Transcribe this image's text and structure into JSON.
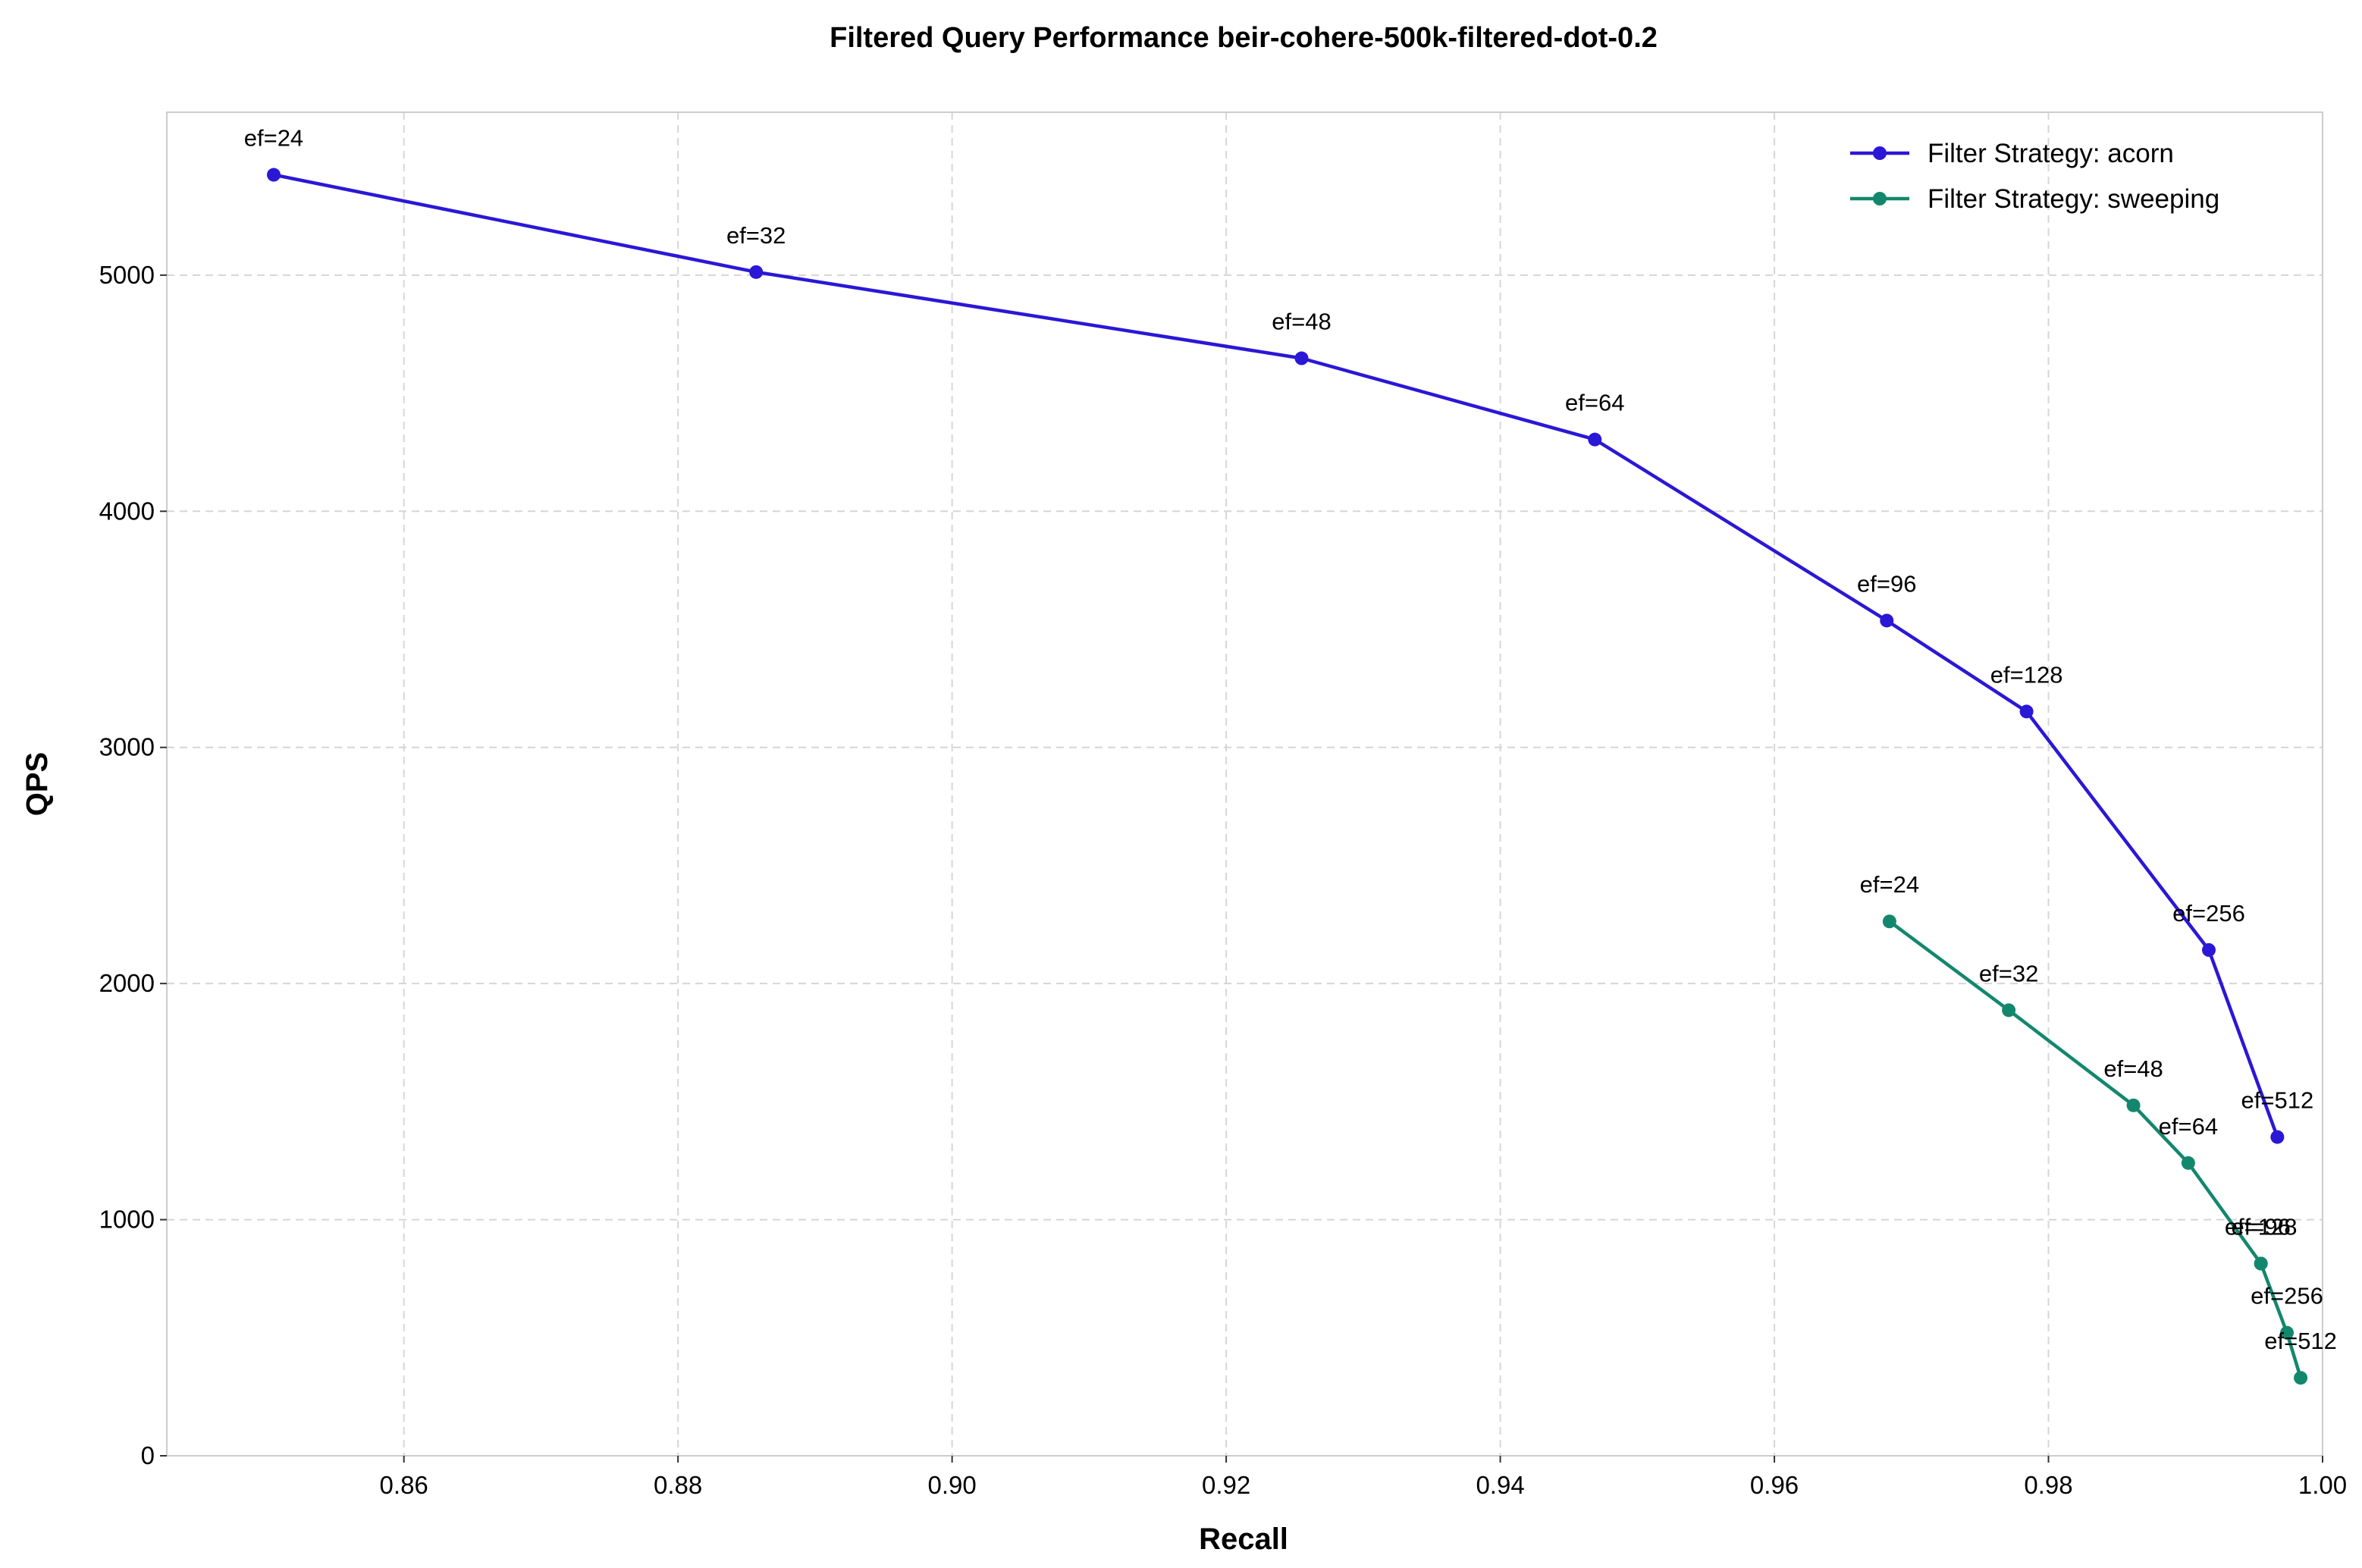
{
  "chart_data": {
    "type": "line",
    "title": "Filtered Query Performance beir-cohere-500k-filtered-dot-0.2",
    "xlabel": "Recall",
    "ylabel": "QPS",
    "xlim": [
      0.8427,
      1.0
    ],
    "ylim": [
      0,
      5690
    ],
    "xticks": [
      0.86,
      0.88,
      0.9,
      0.92,
      0.94,
      0.96,
      0.98,
      1.0
    ],
    "xtick_labels": [
      "0.86",
      "0.88",
      "0.90",
      "0.92",
      "0.94",
      "0.96",
      "0.98",
      "1.00"
    ],
    "yticks": [
      0,
      1000,
      2000,
      3000,
      4000,
      5000
    ],
    "ytick_labels": [
      "0",
      "1000",
      "2000",
      "3000",
      "4000",
      "5000"
    ],
    "grid": true,
    "legend_position": "top-right",
    "series": [
      {
        "name": "Filter Strategy: acorn",
        "color": "#2b17d6",
        "points": [
          {
            "x": 0.8505,
            "y": 5425,
            "label": "ef=24"
          },
          {
            "x": 0.8857,
            "y": 5013,
            "label": "ef=32"
          },
          {
            "x": 0.9255,
            "y": 4648,
            "label": "ef=48"
          },
          {
            "x": 0.9469,
            "y": 4304,
            "label": "ef=64"
          },
          {
            "x": 0.9682,
            "y": 3537,
            "label": "ef=96"
          },
          {
            "x": 0.9784,
            "y": 3152,
            "label": "ef=128"
          },
          {
            "x": 0.9917,
            "y": 2142,
            "label": "ef=256"
          },
          {
            "x": 0.9967,
            "y": 1350,
            "label": "ef=512"
          }
        ]
      },
      {
        "name": "Filter Strategy: sweeping",
        "color": "#13876e",
        "points": [
          {
            "x": 0.9684,
            "y": 2263,
            "label": "ef=24"
          },
          {
            "x": 0.9771,
            "y": 1887,
            "label": "ef=32"
          },
          {
            "x": 0.9862,
            "y": 1484,
            "label": "ef=48"
          },
          {
            "x": 0.9902,
            "y": 1240,
            "label": "ef=64"
          },
          {
            "x": 0.9955,
            "y": 814,
            "label": "ef=96"
          },
          {
            "x": 0.9955,
            "y": 814,
            "label": "ef=128"
          },
          {
            "x": 0.9974,
            "y": 521,
            "label": "ef=256"
          },
          {
            "x": 0.9984,
            "y": 330,
            "label": "ef=512"
          }
        ]
      }
    ]
  }
}
